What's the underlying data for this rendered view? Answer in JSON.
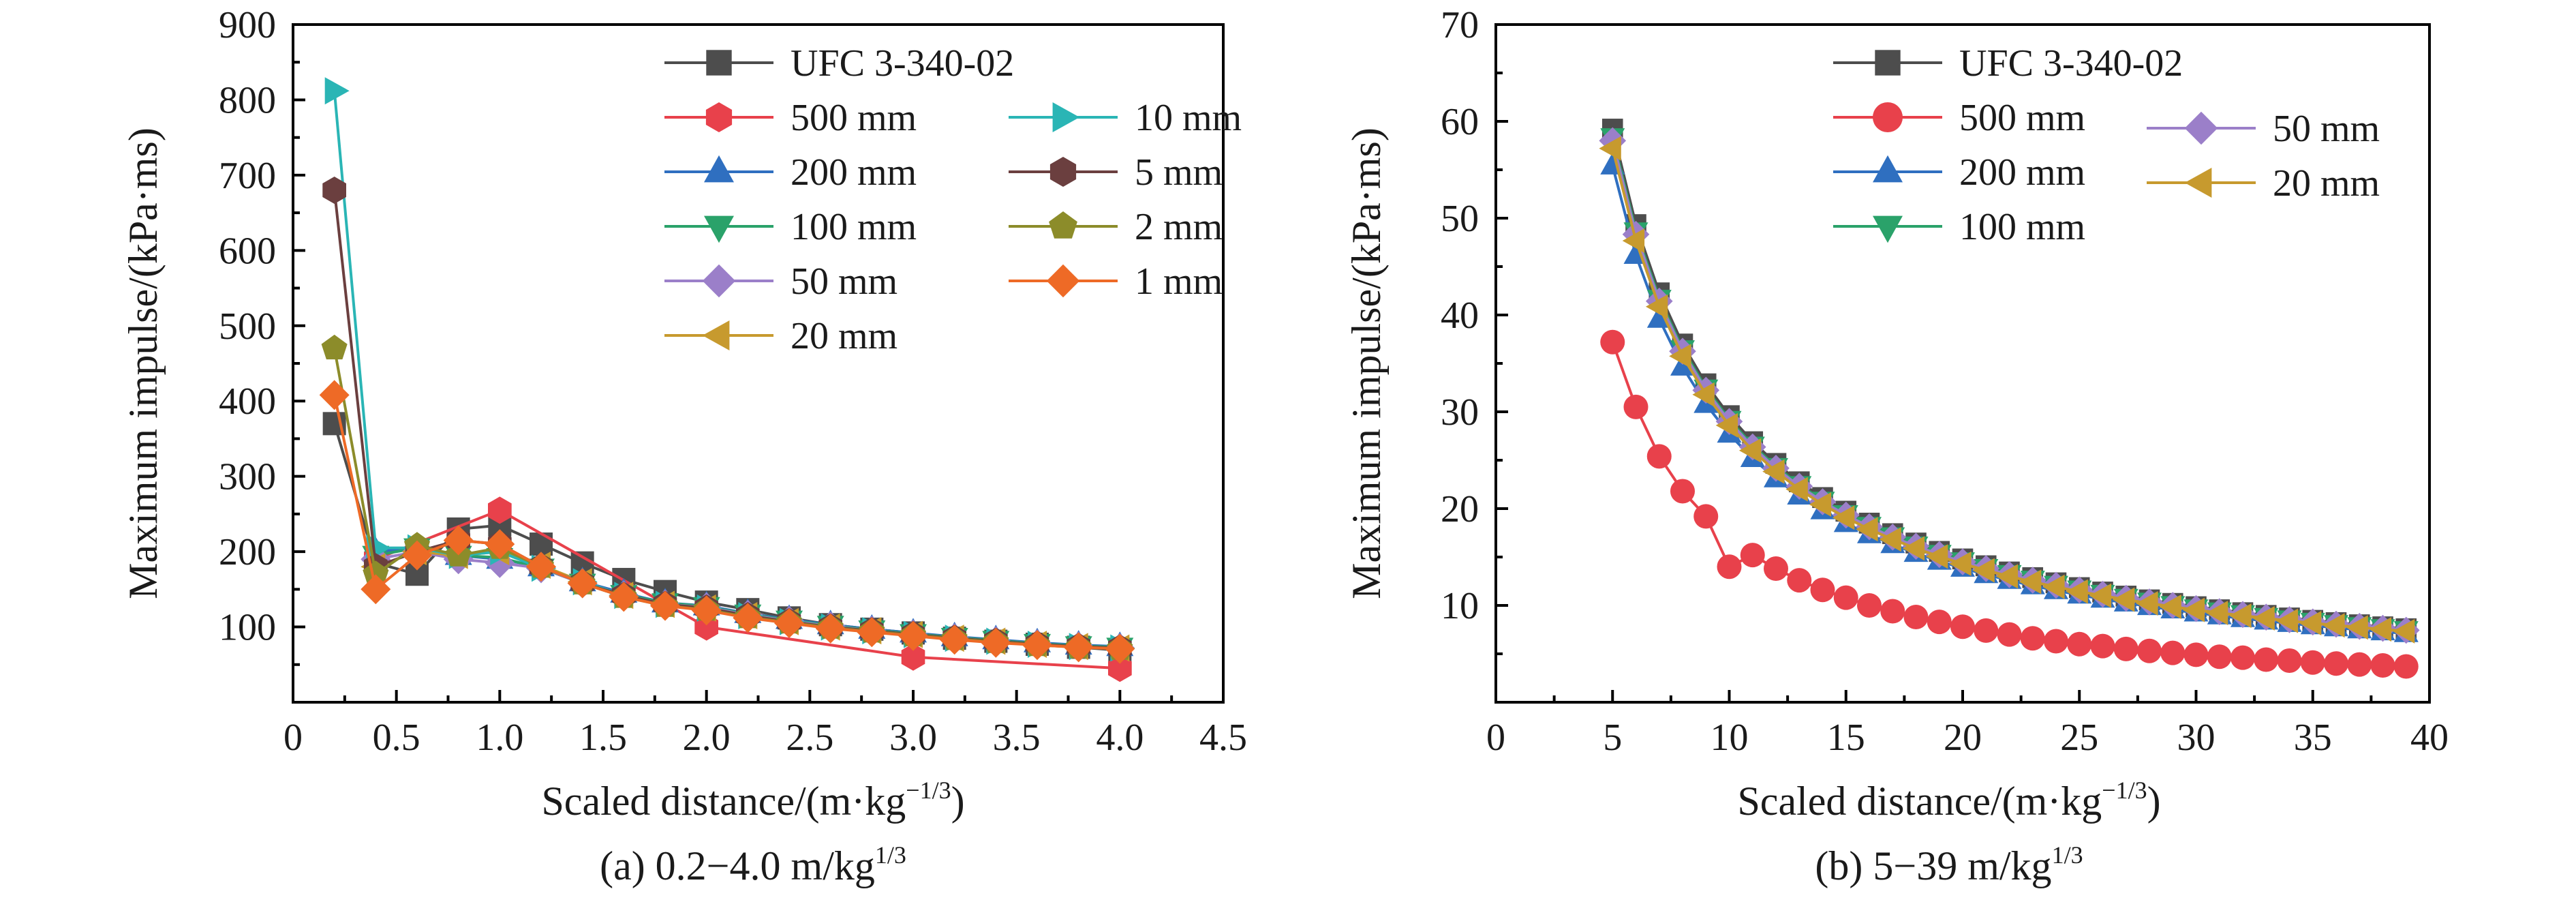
{
  "chart_data": [
    {
      "type": "line",
      "caption_main": "(a) 0.2−4.0 m/kg",
      "caption_sup": "1/3",
      "xlabel_main": "Scaled distance/(m·kg",
      "xlabel_sup": "−1/3",
      "xlabel_end": ")",
      "ylabel": "Maximum impulse/(kPa·ms)",
      "xlim": [
        0,
        4.5
      ],
      "ylim": [
        0,
        900
      ],
      "xticks": [
        0,
        0.5,
        1.0,
        1.5,
        2.0,
        2.5,
        3.0,
        3.5,
        4.0,
        4.5
      ],
      "xtick_labels": [
        "0",
        "0.5",
        "1.0",
        "1.5",
        "2.0",
        "2.5",
        "3.0",
        "3.5",
        "4.0",
        "4.5"
      ],
      "yticks": [
        100,
        200,
        300,
        400,
        500,
        600,
        700,
        800,
        900
      ],
      "ytick_labels": [
        "100",
        "200",
        "300",
        "400",
        "500",
        "600",
        "700",
        "800",
        "900"
      ],
      "grid": false,
      "legend_position": "top-right",
      "series": [
        {
          "name": "UFC 3-340-02",
          "color": "#4d4d4d",
          "marker": "square",
          "x": [
            0.2,
            0.4,
            0.6,
            0.8,
            1.0,
            1.2,
            1.4,
            1.6,
            1.8,
            2.0,
            2.2,
            2.4,
            2.6,
            2.8,
            3.0,
            3.2,
            3.4,
            3.6,
            3.8,
            4.0
          ],
          "y": [
            370,
            185,
            170,
            230,
            235,
            210,
            185,
            163,
            147,
            133,
            123,
            112,
            103,
            97,
            92,
            85,
            81,
            77,
            73,
            69
          ]
        },
        {
          "name": "500 mm",
          "color": "#e8414b",
          "marker": "hexagon",
          "x": [
            0.4,
            1.0,
            2.0,
            3.0,
            4.0
          ],
          "y": [
            190,
            255,
            100,
            60,
            45
          ]
        },
        {
          "name": "200 mm",
          "color": "#2f6fc0",
          "marker": "triangle-up",
          "x": [
            0.4,
            0.6,
            0.8,
            1.0,
            1.2,
            1.4,
            1.6,
            1.8,
            2.0,
            2.2,
            2.4,
            2.6,
            2.8,
            3.0,
            3.2,
            3.4,
            3.6,
            3.8,
            4.0
          ],
          "y": [
            200,
            205,
            195,
            190,
            180,
            160,
            145,
            132,
            128,
            118,
            110,
            103,
            97,
            92,
            87,
            83,
            79,
            76,
            74
          ]
        },
        {
          "name": "100 mm",
          "color": "#2aa26a",
          "marker": "triangle-down",
          "x": [
            0.4,
            0.6,
            0.8,
            1.0,
            1.2,
            1.4,
            1.6,
            1.8,
            2.0,
            2.2,
            2.4,
            2.6,
            2.8,
            3.0,
            3.2,
            3.4,
            3.6,
            3.8,
            4.0
          ],
          "y": [
            195,
            205,
            195,
            192,
            178,
            158,
            143,
            132,
            127,
            117,
            109,
            102,
            96,
            91,
            86,
            82,
            78,
            75,
            73
          ]
        },
        {
          "name": "50 mm",
          "color": "#9b7fc9",
          "marker": "diamond",
          "x": [
            0.4,
            0.6,
            0.8,
            1.0,
            1.2,
            1.4,
            1.6,
            1.8,
            2.0,
            2.2,
            2.4,
            2.6,
            2.8,
            3.0,
            3.2,
            3.4,
            3.6,
            3.8,
            4.0
          ],
          "y": [
            190,
            200,
            190,
            185,
            178,
            158,
            142,
            130,
            126,
            116,
            108,
            101,
            95,
            90,
            85,
            81,
            77,
            74,
            72
          ]
        },
        {
          "name": "20 mm",
          "color": "#c79a2e",
          "marker": "triangle-left",
          "x": [
            0.4,
            0.6,
            0.8,
            1.0,
            1.2,
            1.4,
            1.6,
            1.8,
            2.0,
            2.2,
            2.4,
            2.6,
            2.8,
            3.0,
            3.2,
            3.4,
            3.6,
            3.8,
            4.0
          ],
          "y": [
            180,
            200,
            195,
            200,
            182,
            160,
            142,
            130,
            125,
            115,
            107,
            100,
            95,
            90,
            85,
            81,
            77,
            74,
            72
          ]
        },
        {
          "name": "10 mm",
          "color": "#2ab5b5",
          "marker": "triangle-right",
          "x": [
            0.2,
            0.4,
            0.6,
            0.8,
            1.0,
            1.2,
            1.4,
            1.6,
            1.8,
            2.0,
            2.2,
            2.4,
            2.6,
            2.8,
            3.0,
            3.2,
            3.4,
            3.6,
            3.8,
            4.0
          ],
          "y": [
            812,
            205,
            205,
            195,
            200,
            178,
            160,
            142,
            130,
            125,
            115,
            107,
            100,
            95,
            90,
            85,
            81,
            77,
            74,
            72
          ]
        },
        {
          "name": "5 mm",
          "color": "#6b3f3f",
          "marker": "hexagon",
          "x": [
            0.2,
            0.4,
            0.6,
            0.8,
            1.0,
            1.2,
            1.4,
            1.6,
            1.8,
            2.0,
            2.2,
            2.4,
            2.6,
            2.8,
            3.0,
            3.2,
            3.4,
            3.6,
            3.8,
            4.0
          ],
          "y": [
            680,
            180,
            200,
            215,
            210,
            180,
            158,
            142,
            130,
            125,
            115,
            107,
            100,
            95,
            90,
            85,
            81,
            77,
            74,
            72
          ]
        },
        {
          "name": "2 mm",
          "color": "#8c8c2a",
          "marker": "pentagon",
          "x": [
            0.2,
            0.4,
            0.6,
            0.8,
            1.0,
            1.2,
            1.4,
            1.6,
            1.8,
            2.0,
            2.2,
            2.4,
            2.6,
            2.8,
            3.0,
            3.2,
            3.4,
            3.6,
            3.8,
            4.0
          ],
          "y": [
            470,
            170,
            208,
            195,
            205,
            180,
            158,
            140,
            128,
            123,
            113,
            106,
            99,
            94,
            89,
            84,
            80,
            76,
            73,
            71
          ]
        },
        {
          "name": "1 mm",
          "color": "#ee6a26",
          "marker": "diamond",
          "x": [
            0.2,
            0.4,
            0.6,
            0.8,
            1.0,
            1.2,
            1.4,
            1.6,
            1.8,
            2.0,
            2.2,
            2.4,
            2.6,
            2.8,
            3.0,
            3.2,
            3.4,
            3.6,
            3.8,
            4.0
          ],
          "y": [
            408,
            150,
            195,
            215,
            210,
            180,
            158,
            140,
            128,
            122,
            112,
            105,
            98,
            93,
            88,
            83,
            79,
            76,
            73,
            71
          ]
        }
      ]
    },
    {
      "type": "line",
      "caption_main": "(b) 5−39 m/kg",
      "caption_sup": "1/3",
      "xlabel_main": "Scaled distance/(m·kg",
      "xlabel_sup": "−1/3",
      "xlabel_end": ")",
      "ylabel": "Maximum impulse/(kPa·ms)",
      "xlim": [
        0,
        40
      ],
      "ylim": [
        0,
        70
      ],
      "xticks": [
        0,
        5,
        10,
        15,
        20,
        25,
        30,
        35,
        40
      ],
      "xtick_labels": [
        "0",
        "5",
        "10",
        "15",
        "20",
        "25",
        "30",
        "35",
        "40"
      ],
      "yticks": [
        10,
        20,
        30,
        40,
        50,
        60,
        70
      ],
      "ytick_labels": [
        "10",
        "20",
        "30",
        "40",
        "50",
        "60",
        "70"
      ],
      "grid": false,
      "legend_position": "top-right",
      "series": [
        {
          "name": "UFC 3-340-02",
          "color": "#4d4d4d",
          "marker": "square",
          "k": 296,
          "p": 1.0,
          "x_start": 5,
          "x_end": 39
        },
        {
          "name": "500 mm",
          "color": "#e8414b",
          "marker": "circle",
          "x": [
            5,
            6,
            7,
            8,
            9,
            10,
            11,
            12,
            13,
            14,
            15,
            16,
            17,
            18,
            19,
            20,
            21,
            22,
            23,
            24,
            25,
            26,
            27,
            28,
            29,
            30,
            31,
            32,
            33,
            34,
            35,
            36,
            37,
            38,
            39
          ],
          "y": [
            37.2,
            30.5,
            25.4,
            21.8,
            19.2,
            14.0,
            15.2,
            13.8,
            12.6,
            11.6,
            10.8,
            10.0,
            9.4,
            8.8,
            8.3,
            7.8,
            7.4,
            7.0,
            6.6,
            6.3,
            6.0,
            5.8,
            5.5,
            5.3,
            5.1,
            4.9,
            4.7,
            4.6,
            4.4,
            4.3,
            4.1,
            4.0,
            3.9,
            3.8,
            3.7
          ]
        },
        {
          "name": "200 mm",
          "color": "#2f6fc0",
          "marker": "triangle-up",
          "k": 277,
          "p": 1.0,
          "x_start": 5,
          "x_end": 39
        },
        {
          "name": "100 mm",
          "color": "#2aa26a",
          "marker": "triangle-down",
          "k": 292,
          "p": 1.0,
          "x_start": 5,
          "x_end": 39
        },
        {
          "name": "50 mm",
          "color": "#9b7fc9",
          "marker": "diamond",
          "k": 290,
          "p": 1.0,
          "x_start": 5,
          "x_end": 39
        },
        {
          "name": "20 mm",
          "color": "#c79a2e",
          "marker": "triangle-left",
          "k": 286,
          "p": 1.0,
          "x_start": 5,
          "x_end": 39
        }
      ]
    }
  ]
}
